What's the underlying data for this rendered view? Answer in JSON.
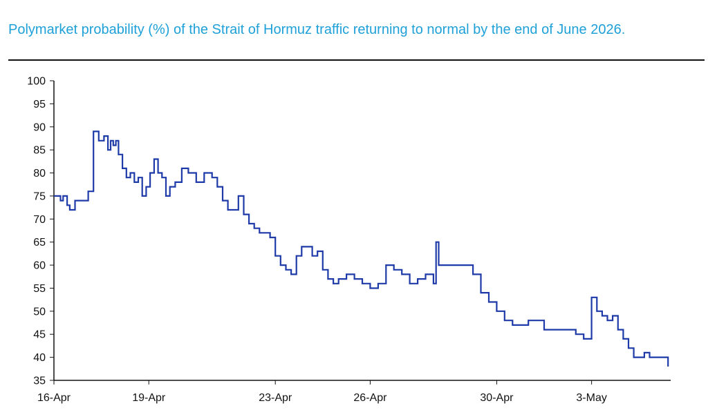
{
  "title": "Polymarket probability (%) of the Strait of Hormuz traffic returning to normal by the end of June 2026.",
  "colors": {
    "title": "#1ea0d8",
    "line": "#1e3aa8",
    "axis": "#111111"
  },
  "chart_data": {
    "type": "line",
    "title": "Polymarket probability (%) of the Strait of Hormuz traffic returning to normal by the end of June 2026.",
    "xlabel": "",
    "ylabel": "",
    "ylim": [
      35,
      100
    ],
    "yticks": [
      35,
      40,
      45,
      50,
      55,
      60,
      65,
      70,
      75,
      80,
      85,
      90,
      95,
      100
    ],
    "xlim": [
      "2026-04-16",
      "2026-05-05 12:00"
    ],
    "xticks": [
      {
        "date": "2026-04-16",
        "label": "16-Apr"
      },
      {
        "date": "2026-04-19",
        "label": "19-Apr"
      },
      {
        "date": "2026-04-23",
        "label": "23-Apr"
      },
      {
        "date": "2026-04-26",
        "label": "26-Apr"
      },
      {
        "date": "2026-04-30",
        "label": "30-Apr"
      },
      {
        "date": "2026-05-03",
        "label": "3-May"
      }
    ],
    "grid": false,
    "legend": "none",
    "step": true,
    "series": [
      {
        "x": [
          "2026-04-16 00:00",
          "2026-04-16 05:00",
          "2026-04-16 07:00",
          "2026-04-16 10:00",
          "2026-04-16 12:00",
          "2026-04-16 16:00",
          "2026-04-16 20:00",
          "2026-04-17 02:00",
          "2026-04-17 06:00",
          "2026-04-17 10:00",
          "2026-04-17 14:00",
          "2026-04-17 17:00",
          "2026-04-17 19:00",
          "2026-04-17 21:00",
          "2026-04-17 23:00",
          "2026-04-18 01:00",
          "2026-04-18 04:00",
          "2026-04-18 07:00",
          "2026-04-18 10:00",
          "2026-04-18 13:00",
          "2026-04-18 16:00",
          "2026-04-18 19:00",
          "2026-04-18 22:00",
          "2026-04-19 01:00",
          "2026-04-19 04:00",
          "2026-04-19 07:00",
          "2026-04-19 10:00",
          "2026-04-19 13:00",
          "2026-04-19 16:00",
          "2026-04-19 20:00",
          "2026-04-20 01:00",
          "2026-04-20 06:00",
          "2026-04-20 12:00",
          "2026-04-20 18:00",
          "2026-04-21 00:00",
          "2026-04-21 04:00",
          "2026-04-21 08:00",
          "2026-04-21 12:00",
          "2026-04-21 16:00",
          "2026-04-21 20:00",
          "2026-04-22 00:00",
          "2026-04-22 04:00",
          "2026-04-22 08:00",
          "2026-04-22 12:00",
          "2026-04-22 16:00",
          "2026-04-22 20:00",
          "2026-04-23 00:00",
          "2026-04-23 04:00",
          "2026-04-23 08:00",
          "2026-04-23 12:00",
          "2026-04-23 16:00",
          "2026-04-23 20:00",
          "2026-04-24 00:00",
          "2026-04-24 04:00",
          "2026-04-24 08:00",
          "2026-04-24 12:00",
          "2026-04-24 16:00",
          "2026-04-24 20:00",
          "2026-04-25 00:00",
          "2026-04-25 06:00",
          "2026-04-25 12:00",
          "2026-04-25 18:00",
          "2026-04-26 00:00",
          "2026-04-26 06:00",
          "2026-04-26 12:00",
          "2026-04-26 18:00",
          "2026-04-27 00:00",
          "2026-04-27 06:00",
          "2026-04-27 12:00",
          "2026-04-27 18:00",
          "2026-04-28 00:00",
          "2026-04-28 02:00",
          "2026-04-28 04:00",
          "2026-04-28 12:00",
          "2026-04-28 20:00",
          "2026-04-29 00:00",
          "2026-04-29 06:00",
          "2026-04-29 12:00",
          "2026-04-29 18:00",
          "2026-04-30 00:00",
          "2026-04-30 06:00",
          "2026-04-30 12:00",
          "2026-04-30 18:00",
          "2026-05-01 00:00",
          "2026-05-01 06:00",
          "2026-05-01 12:00",
          "2026-05-01 18:00",
          "2026-05-02 00:00",
          "2026-05-02 06:00",
          "2026-05-02 12:00",
          "2026-05-02 18:00",
          "2026-05-03 00:00",
          "2026-05-03 04:00",
          "2026-05-03 08:00",
          "2026-05-03 12:00",
          "2026-05-03 16:00",
          "2026-05-03 20:00",
          "2026-05-04 00:00",
          "2026-05-04 04:00",
          "2026-05-04 08:00",
          "2026-05-04 12:00",
          "2026-05-04 16:00",
          "2026-05-04 20:00",
          "2026-05-05 00:00",
          "2026-05-05 06:00",
          "2026-05-05 10:00"
        ],
        "values": [
          75,
          74,
          75,
          73,
          72,
          74,
          74,
          76,
          89,
          87,
          88,
          85,
          87,
          86,
          87,
          84,
          81,
          79,
          80,
          78,
          79,
          75,
          77,
          80,
          83,
          80,
          79,
          75,
          77,
          78,
          81,
          80,
          78,
          80,
          79,
          77,
          74,
          72,
          72,
          75,
          71,
          69,
          68,
          67,
          67,
          66,
          62,
          60,
          59,
          58,
          62,
          64,
          64,
          62,
          63,
          59,
          57,
          56,
          57,
          58,
          57,
          56,
          55,
          56,
          60,
          59,
          58,
          56,
          57,
          58,
          56,
          65,
          60,
          60,
          60,
          60,
          58,
          54,
          52,
          50,
          48,
          47,
          47,
          48,
          48,
          46,
          46,
          46,
          46,
          45,
          44,
          53,
          50,
          49,
          48,
          49,
          46,
          44,
          42,
          40,
          40,
          41,
          40,
          40,
          40,
          38
        ]
      }
    ]
  }
}
